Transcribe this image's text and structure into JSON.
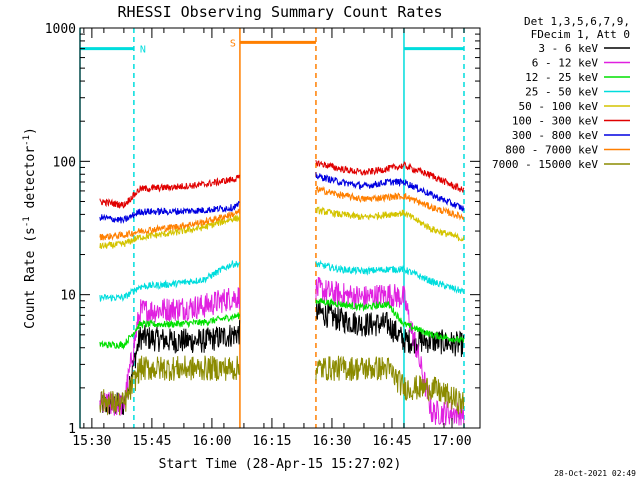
{
  "chart_data": {
    "type": "line",
    "title": "RHESSI Observing Summary Count Rates",
    "xlabel": "Start Time (28-Apr-15 15:27:02)",
    "ylabel": "Count Rate (s⁻¹ detector⁻¹)",
    "ylabel_main": "Count Rate (s",
    "ylabel_sup1": "-1",
    "ylabel_mid": " detector",
    "ylabel_sup2": "-1",
    "ylabel_end": ")",
    "y_scale": "log",
    "ylim": [
      1,
      1000
    ],
    "xlim": [
      "15:27:02",
      "17:07"
    ],
    "x_ticks": [
      "15:30",
      "15:45",
      "16:00",
      "16:15",
      "16:30",
      "16:45",
      "17:00"
    ],
    "y_ticks": [
      "1",
      "10",
      "100",
      "1000"
    ],
    "legend_header": [
      "Det 1,3,5,6,7,9,",
      "FDecim 1, Att 0"
    ],
    "legend_position": "right",
    "series": [
      {
        "name": "3 - 6 keV",
        "color": "#000000",
        "x": [
          "15:32",
          "15:38",
          "15:42",
          "15:50",
          "15:58",
          "16:05",
          "16:26",
          "16:32",
          "16:38",
          "16:44",
          "16:48",
          "16:55",
          "17:03"
        ],
        "y": [
          1.5,
          1.5,
          4.8,
          4.5,
          4.5,
          5.0,
          7.5,
          6.5,
          6.0,
          6.0,
          4.5,
          4.5,
          4.2
        ]
      },
      {
        "name": "6 - 12 keV",
        "color": "#e020e0",
        "x": [
          "15:32",
          "15:38",
          "15:42",
          "15:50",
          "15:58",
          "16:05",
          "16:26",
          "16:32",
          "16:38",
          "16:44",
          "16:48",
          "16:55",
          "17:03"
        ],
        "y": [
          1.5,
          1.5,
          7.5,
          7.8,
          8.2,
          9.5,
          11,
          10,
          9.5,
          10,
          9.5,
          1.3,
          1.3
        ]
      },
      {
        "name": "12 - 25 keV",
        "color": "#00e000",
        "x": [
          "15:32",
          "15:38",
          "15:42",
          "15:50",
          "15:58",
          "16:05",
          "16:26",
          "16:32",
          "16:38",
          "16:44",
          "16:48",
          "16:55",
          "17:03"
        ],
        "y": [
          4.2,
          4.2,
          6.0,
          6.0,
          6.2,
          6.8,
          9.0,
          8.5,
          8.0,
          8.5,
          6.0,
          5.0,
          4.5
        ]
      },
      {
        "name": "25 - 50 keV",
        "color": "#00dddd",
        "x": [
          "15:32",
          "15:38",
          "15:42",
          "15:50",
          "15:58",
          "16:05",
          "16:26",
          "16:32",
          "16:38",
          "16:44",
          "16:48",
          "16:55",
          "17:03"
        ],
        "y": [
          9.5,
          9.5,
          11.5,
          12.0,
          13.0,
          17.0,
          17.0,
          15.5,
          15.0,
          15.5,
          15.5,
          12.5,
          10.5
        ]
      },
      {
        "name": "50 - 100 keV",
        "color": "#d4c400",
        "x": [
          "15:32",
          "15:38",
          "15:42",
          "15:50",
          "15:58",
          "16:05",
          "16:26",
          "16:32",
          "16:38",
          "16:44",
          "16:48",
          "16:55",
          "17:03"
        ],
        "y": [
          23,
          24,
          27,
          29,
          32,
          37,
          43,
          40,
          38,
          40,
          41,
          31,
          26
        ]
      },
      {
        "name": "100 - 300 keV",
        "color": "#e00000",
        "x": [
          "15:32",
          "15:38",
          "15:42",
          "15:50",
          "15:58",
          "16:05",
          "16:26",
          "16:32",
          "16:38",
          "16:44",
          "16:48",
          "16:55",
          "17:03"
        ],
        "y": [
          50,
          47,
          62,
          64,
          67,
          73,
          98,
          88,
          82,
          88,
          93,
          78,
          60
        ]
      },
      {
        "name": "300 - 800 keV",
        "color": "#0000e0",
        "x": [
          "15:32",
          "15:38",
          "15:42",
          "15:50",
          "15:58",
          "16:05",
          "16:26",
          "16:32",
          "16:38",
          "16:44",
          "16:48",
          "16:55",
          "17:03"
        ],
        "y": [
          38,
          36,
          42,
          42,
          43,
          45,
          78,
          70,
          65,
          70,
          70,
          56,
          44
        ]
      },
      {
        "name": "800 - 7000 keV",
        "color": "#ff7f00",
        "x": [
          "15:32",
          "15:38",
          "15:42",
          "15:50",
          "15:58",
          "16:05",
          "16:26",
          "16:32",
          "16:38",
          "16:44",
          "16:48",
          "16:55",
          "17:03"
        ],
        "y": [
          27,
          28,
          30,
          32,
          35,
          40,
          62,
          56,
          52,
          54,
          55,
          45,
          38
        ]
      },
      {
        "name": "7000 - 15000 keV",
        "color": "#8b8b00",
        "x": [
          "15:32",
          "15:38",
          "15:42",
          "15:50",
          "15:58",
          "16:05",
          "16:26",
          "16:32",
          "16:38",
          "16:44",
          "16:48",
          "16:55",
          "17:03"
        ],
        "y": [
          1.6,
          1.5,
          2.8,
          2.8,
          2.8,
          2.8,
          2.8,
          2.8,
          2.8,
          2.8,
          2.0,
          2.0,
          1.5
        ]
      }
    ],
    "annotations": [
      {
        "label": "N",
        "start": "15:27:02",
        "end": "15:40:30",
        "color": "#00dddd",
        "level": 700
      },
      {
        "label": "S",
        "start": "16:07:00",
        "end": "16:26:00",
        "color": "#ff7f00",
        "level": 780
      },
      {
        "label": "",
        "start": "16:48:00",
        "end": "17:03:00",
        "color": "#00dddd",
        "level": 700
      }
    ],
    "timestamp": "28-Oct-2021 02:49"
  }
}
